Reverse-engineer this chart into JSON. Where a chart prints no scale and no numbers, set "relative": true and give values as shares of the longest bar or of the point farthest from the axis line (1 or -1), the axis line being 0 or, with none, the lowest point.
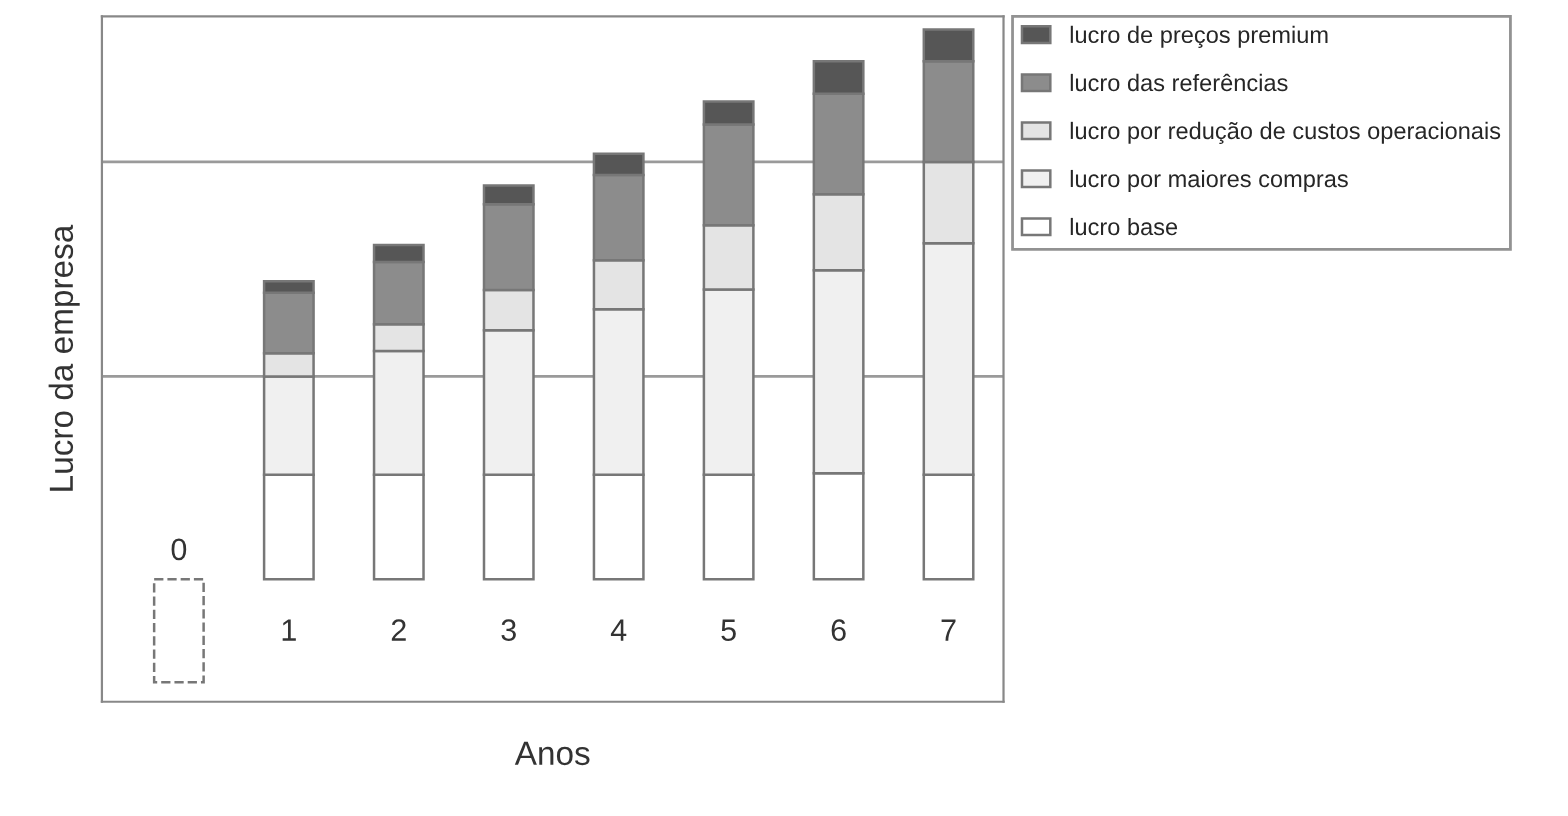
{
  "chart_data": {
    "type": "bar",
    "stacked": true,
    "relative": true,
    "xlabel": "Anos",
    "ylabel": "Lucro da empresa",
    "legend": "right",
    "categories": [
      "0",
      "1",
      "2",
      "3",
      "4",
      "5",
      "6",
      "7"
    ],
    "series": [
      {
        "name": "lucro base",
        "color": "#ffffff",
        "values": [
          -0.187,
          0.19,
          0.19,
          0.19,
          0.19,
          0.19,
          0.193,
          0.19
        ]
      },
      {
        "name": "lucro por maiores compras",
        "color": "#f0f0f0",
        "values": [
          null,
          0.179,
          0.225,
          0.263,
          0.301,
          0.337,
          0.369,
          0.421
        ]
      },
      {
        "name": "lucro por redução de custos operacionais",
        "color": "#e4e4e4",
        "values": [
          null,
          0.042,
          0.049,
          0.073,
          0.089,
          0.117,
          0.138,
          0.148
        ]
      },
      {
        "name": "lucro das referências",
        "color": "#8c8c8c",
        "values": [
          null,
          0.11,
          0.113,
          0.156,
          0.155,
          0.183,
          0.183,
          0.183
        ]
      },
      {
        "name": "lucro de preços premium",
        "color": "#565656",
        "values": [
          null,
          0.021,
          0.031,
          0.034,
          0.039,
          0.042,
          0.059,
          0.058
        ]
      }
    ],
    "ref_lines": [
      {
        "axis": "y",
        "value": 0.369,
        "color": "#9a9a9a"
      },
      {
        "axis": "y",
        "value": 0.759,
        "color": "#9a9a9a"
      }
    ]
  }
}
